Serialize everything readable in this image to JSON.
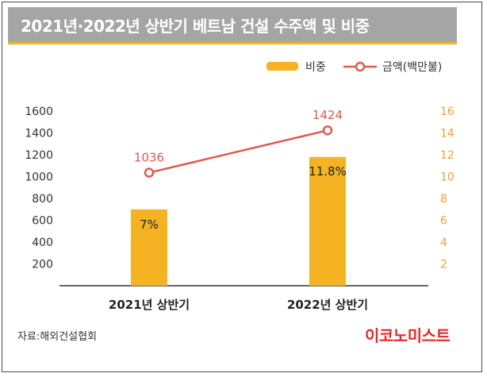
{
  "title": "2021년·2022년 상반기 베트남 건설 수주액 및 비중",
  "source": "자료:해외건설협회",
  "brand": "이코노미스트",
  "colors": {
    "bar": "#f5b323",
    "line": "#e05a4e",
    "left_axis_text": "#333333",
    "right_axis_text": "#f0a030",
    "title_bg": "#a5a5a5"
  },
  "chart_data": {
    "type": "bar",
    "categories": [
      "2021년 상반기",
      "2022년 상반기"
    ],
    "series": [
      {
        "name": "비중",
        "type": "bar",
        "axis": "right",
        "values": [
          7,
          11.8
        ],
        "value_labels": [
          "7%",
          "11.8%"
        ]
      },
      {
        "name": "금액(백만불)",
        "type": "line",
        "axis": "left",
        "values": [
          1036,
          1424
        ],
        "value_labels": [
          "1036",
          "1424"
        ]
      }
    ],
    "y_left": {
      "ylim": [
        0,
        1600
      ],
      "ticks": [
        200,
        400,
        600,
        800,
        1000,
        1200,
        1400,
        1600
      ]
    },
    "y_right": {
      "ylim": [
        0,
        16
      ],
      "ticks": [
        2,
        4,
        6,
        8,
        10,
        12,
        14,
        16
      ]
    },
    "legend": {
      "position": "top-right",
      "items": [
        "비중",
        "금액(백만불)"
      ]
    },
    "grid": false
  }
}
